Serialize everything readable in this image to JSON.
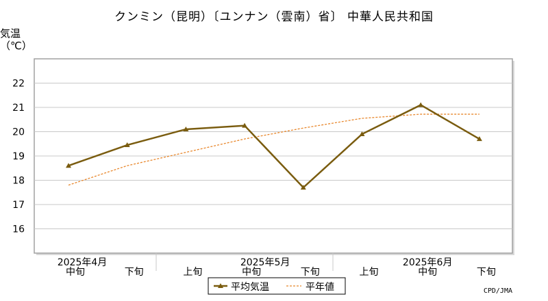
{
  "header": {
    "title": "クンミン（昆明）〔ユンナン（雲南）省〕 中華人民共和国",
    "ylabel_line1": "気温",
    "ylabel_line2": "（℃）",
    "credit": "CPD/JMA"
  },
  "colors": {
    "actual": "#7a5c0f",
    "normal": "#e8862a",
    "grid": "#c8c8c8",
    "frame": "#a0a0a0"
  },
  "chart_data": {
    "type": "line",
    "x_labels": [
      "中旬",
      "下旬",
      "上旬",
      "中旬",
      "下旬",
      "上旬",
      "中旬",
      "下旬"
    ],
    "month_labels": [
      "2025年4月",
      "2025年5月",
      "2025年6月"
    ],
    "ylim": [
      15,
      23
    ],
    "y_ticks": [
      16,
      17,
      18,
      19,
      20,
      21,
      22
    ],
    "grid": true,
    "legend_position": "bottom",
    "series": [
      {
        "name": "平均気温",
        "style": "solid-triangle",
        "values": [
          18.6,
          19.45,
          20.1,
          20.25,
          17.7,
          19.9,
          21.1,
          19.7
        ]
      },
      {
        "name": "平年値",
        "style": "dashed",
        "values": [
          17.8,
          18.6,
          19.15,
          19.7,
          20.15,
          20.55,
          20.72,
          20.72
        ]
      }
    ]
  }
}
